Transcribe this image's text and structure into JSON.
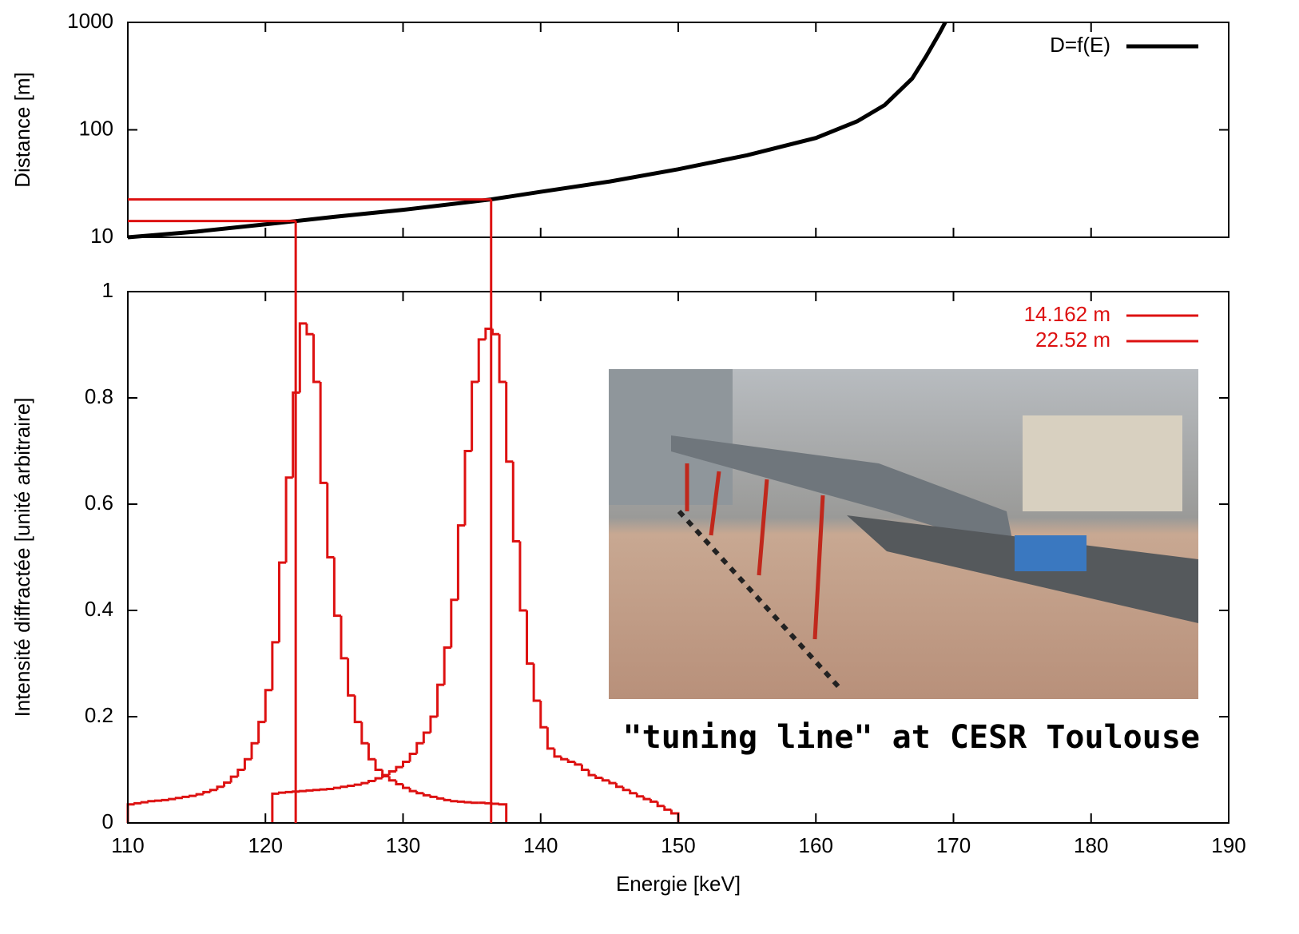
{
  "chart_data": [
    {
      "type": "line",
      "ylabel": "Distance [m]",
      "log_y": true,
      "xlim": [
        110,
        190
      ],
      "xticks": [
        110,
        120,
        130,
        140,
        150,
        160,
        170,
        180,
        190
      ],
      "ylim": [
        10,
        1000
      ],
      "yticks": [
        10,
        100,
        1000
      ],
      "legend": "upper right",
      "x": [
        110,
        115,
        120,
        122.2,
        125,
        130,
        136.4,
        140,
        145,
        150,
        155,
        160,
        163,
        165,
        167,
        168,
        169,
        169.4
      ],
      "series": [
        {
          "name": "D=f(E)",
          "color": "#000000",
          "values": [
            10,
            11.3,
            13.2,
            14.162,
            15.5,
            18,
            22.52,
            26.5,
            33,
            43,
            58,
            84,
            120,
            170,
            300,
            480,
            800,
            1000
          ]
        }
      ],
      "markers": [
        {
          "x": 122.2,
          "y": 14.162,
          "color": "#dd1111"
        },
        {
          "x": 136.4,
          "y": 22.52,
          "color": "#dd1111"
        }
      ]
    },
    {
      "type": "histogram",
      "xlabel": "Energie [keV]",
      "ylabel": "Intensité diffractée [unité arbitraire]",
      "xlim": [
        110,
        190
      ],
      "xticks": [
        110,
        120,
        130,
        140,
        150,
        160,
        170,
        180,
        190
      ],
      "ylim": [
        0,
        1
      ],
      "yticks": [
        0,
        0.2,
        0.4,
        0.6,
        0.8,
        1
      ],
      "legend": "upper right",
      "annotations": [
        "\"tuning line\" at CESR Toulouse"
      ],
      "series": [
        {
          "name": "14.162 m",
          "color": "#dd1111",
          "bins": [
            110,
            110.5,
            111,
            111.5,
            112,
            112.5,
            113,
            113.5,
            114,
            114.5,
            115,
            115.5,
            116,
            116.5,
            117,
            117.5,
            118,
            118.5,
            119,
            119.5,
            120,
            120.5,
            121,
            121.5,
            122,
            122.5,
            123,
            123.5,
            124,
            124.5,
            125,
            125.5,
            126,
            126.5,
            127,
            127.5,
            128,
            128.5,
            129,
            129.5,
            130,
            130.5,
            131,
            131.5,
            132,
            132.5,
            133,
            133.5,
            134,
            134.5,
            135,
            135.5,
            136,
            136.5,
            137,
            137.5
          ],
          "values": [
            0.035,
            0.037,
            0.039,
            0.041,
            0.042,
            0.043,
            0.045,
            0.047,
            0.049,
            0.051,
            0.054,
            0.058,
            0.062,
            0.068,
            0.076,
            0.087,
            0.1,
            0.12,
            0.15,
            0.19,
            0.25,
            0.34,
            0.49,
            0.65,
            0.81,
            0.94,
            0.92,
            0.83,
            0.64,
            0.5,
            0.39,
            0.31,
            0.24,
            0.19,
            0.15,
            0.12,
            0.1,
            0.088,
            0.08,
            0.073,
            0.066,
            0.06,
            0.056,
            0.052,
            0.049,
            0.046,
            0.043,
            0.041,
            0.04,
            0.039,
            0.038,
            0.038,
            0.037,
            0.036,
            0.035
          ]
        },
        {
          "name": "22.52 m",
          "color": "#dd1111",
          "bins": [
            120.5,
            121,
            121.5,
            122,
            122.5,
            123,
            123.5,
            124,
            124.5,
            125,
            125.5,
            126,
            126.5,
            127,
            127.5,
            128,
            128.5,
            129,
            129.5,
            130,
            130.5,
            131,
            131.5,
            132,
            132.5,
            133,
            133.5,
            134,
            134.5,
            135,
            135.5,
            136,
            136.5,
            137,
            137.5,
            138,
            138.5,
            139,
            139.5,
            140,
            140.5,
            141,
            141.5,
            142,
            142.5,
            143,
            143.5,
            144,
            144.5,
            145,
            145.5,
            146,
            146.5,
            147,
            147.5,
            148,
            148.5,
            149,
            149.5,
            150
          ],
          "values": [
            0.055,
            0.057,
            0.058,
            0.059,
            0.06,
            0.061,
            0.062,
            0.063,
            0.064,
            0.066,
            0.068,
            0.07,
            0.072,
            0.075,
            0.079,
            0.084,
            0.09,
            0.097,
            0.105,
            0.115,
            0.13,
            0.15,
            0.17,
            0.2,
            0.26,
            0.33,
            0.42,
            0.56,
            0.7,
            0.83,
            0.91,
            0.93,
            0.92,
            0.83,
            0.68,
            0.53,
            0.4,
            0.3,
            0.23,
            0.18,
            0.14,
            0.125,
            0.12,
            0.115,
            0.11,
            0.1,
            0.09,
            0.085,
            0.08,
            0.075,
            0.068,
            0.062,
            0.056,
            0.05,
            0.045,
            0.04,
            0.032,
            0.025,
            0.018
          ]
        }
      ]
    }
  ]
}
